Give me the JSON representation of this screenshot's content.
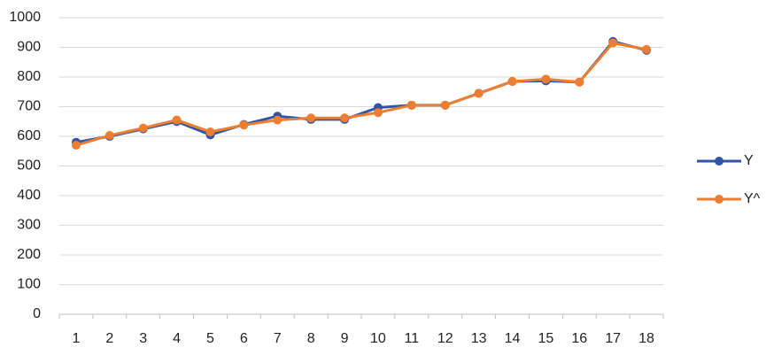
{
  "chart_data": {
    "type": "line",
    "categories": [
      "1",
      "2",
      "3",
      "4",
      "5",
      "6",
      "7",
      "8",
      "9",
      "10",
      "11",
      "12",
      "13",
      "14",
      "15",
      "16",
      "17",
      "18"
    ],
    "series": [
      {
        "name": "Y",
        "color": "#2f55a4",
        "values": [
          580,
          600,
          625,
          650,
          605,
          640,
          668,
          657,
          657,
          697,
          705,
          705,
          745,
          785,
          787,
          783,
          920,
          890
        ]
      },
      {
        "name": "Y^",
        "color": "#ed7d31",
        "values": [
          570,
          603,
          628,
          655,
          615,
          638,
          655,
          662,
          662,
          680,
          705,
          705,
          745,
          785,
          793,
          783,
          915,
          893
        ]
      }
    ],
    "ylim": [
      0,
      1000
    ],
    "yticks": [
      0,
      100,
      200,
      300,
      400,
      500,
      600,
      700,
      800,
      900,
      1000
    ],
    "grid": true,
    "legend": "right"
  }
}
